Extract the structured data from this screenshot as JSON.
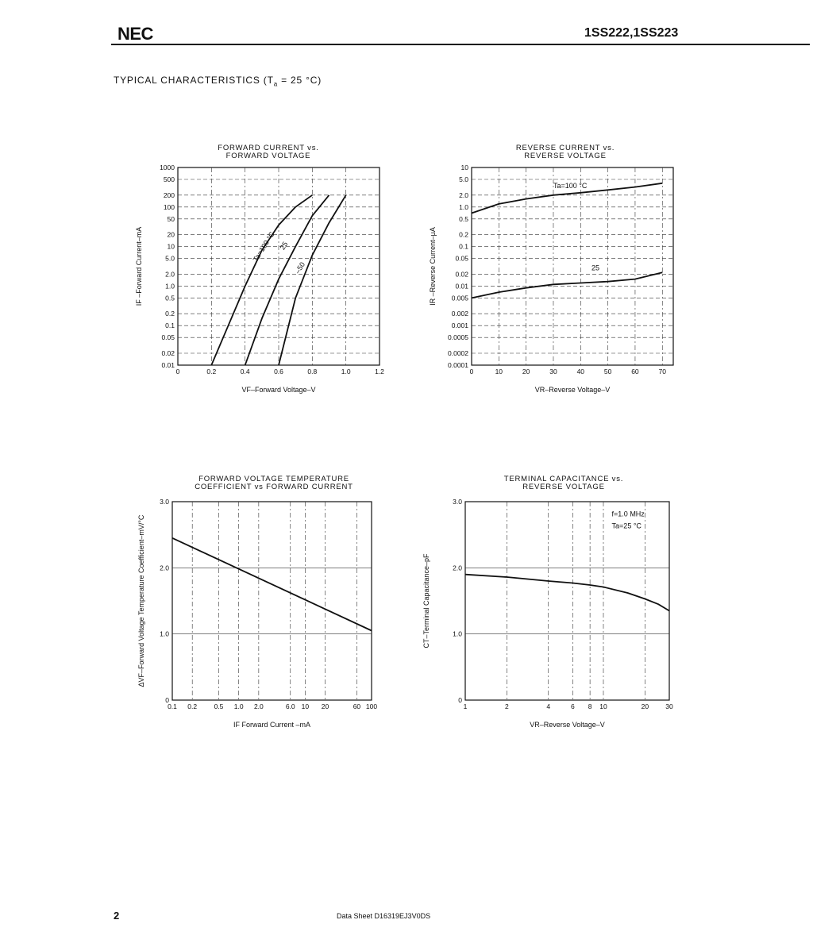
{
  "header": {
    "logo": "NEC",
    "part_number": "1SS222,1SS223"
  },
  "section_title": {
    "main": "TYPICAL CHARACTERISTICS (T",
    "sub": "a",
    "tail": " = 25 °C)"
  },
  "footer": {
    "page": "2",
    "doc_id": "Data Sheet  D16319EJ3V0DS"
  },
  "chart_data": [
    {
      "type": "line",
      "title": [
        "FORWARD CURRENT vs.",
        "FORWARD VOLTAGE"
      ],
      "xlabel": "VF–Forward Voltage–V",
      "ylabel": "IF –Forward Current–mA",
      "xlim": [
        0,
        1.2
      ],
      "ylim": [
        0.01,
        1000
      ],
      "yscale": "log",
      "x_ticks": [
        "0",
        "0.2",
        "0.4",
        "0.6",
        "0.8",
        "1.0",
        "1.2"
      ],
      "y_ticks": [
        "1000",
        "500",
        "200",
        "100",
        "50",
        "20",
        "10",
        "5.0",
        "2.0",
        "1.0",
        "0.5",
        "0.2",
        "0.1",
        "0.05",
        "0.02",
        "0.01"
      ],
      "grid": true,
      "series": [
        {
          "name": "Ta=100 °C",
          "x": [
            0.2,
            0.3,
            0.4,
            0.5,
            0.6,
            0.7,
            0.8
          ],
          "y": [
            0.01,
            0.1,
            1.0,
            8,
            35,
            100,
            200
          ]
        },
        {
          "name": "25",
          "x": [
            0.4,
            0.5,
            0.6,
            0.7,
            0.8,
            0.9
          ],
          "y": [
            0.01,
            0.15,
            1.5,
            10,
            60,
            200
          ]
        },
        {
          "name": "-50",
          "x": [
            0.6,
            0.7,
            0.8,
            0.9,
            1.0
          ],
          "y": [
            0.01,
            0.5,
            6,
            40,
            200
          ]
        }
      ],
      "annotations": [
        "Ta=100 °C",
        "25",
        "–50"
      ]
    },
    {
      "type": "line",
      "title": [
        "REVERSE CURRENT vs.",
        "REVERSE VOLTAGE"
      ],
      "xlabel": "VR–Reverse Voltage–V",
      "ylabel": "IR –Reverse Current–μA",
      "xlim": [
        0,
        74
      ],
      "ylim": [
        0.0001,
        10
      ],
      "yscale": "log",
      "x_ticks": [
        "0",
        "10",
        "20",
        "30",
        "40",
        "50",
        "60",
        "70"
      ],
      "y_ticks": [
        "10",
        "5.0",
        "2.0",
        "1.0",
        "0.5",
        "0.2",
        "0.1",
        "0.05",
        "0.02",
        "0.01",
        "0.005",
        "0.002",
        "0.001",
        "0.0005",
        "0.0002",
        "0.0001"
      ],
      "grid": true,
      "series": [
        {
          "name": "Ta=100 °C",
          "x": [
            0,
            10,
            20,
            30,
            40,
            50,
            60,
            70
          ],
          "y": [
            0.7,
            1.2,
            1.6,
            2.0,
            2.3,
            2.7,
            3.2,
            4.0
          ]
        },
        {
          "name": "25",
          "x": [
            0,
            10,
            20,
            30,
            40,
            50,
            60,
            70
          ],
          "y": [
            0.005,
            0.007,
            0.009,
            0.011,
            0.012,
            0.013,
            0.015,
            0.022
          ]
        }
      ],
      "annotations": [
        "Ta=100 °C",
        "25"
      ]
    },
    {
      "type": "line",
      "title": [
        "FORWARD VOLTAGE TEMPERATURE",
        "COEFFICIENT vs FORWARD CURRENT"
      ],
      "xlabel": "IF  Forward Current –mA",
      "ylabel": "ΔVF–Forward Voltage Temperature Coefficient–mV/°C",
      "xlim": [
        0.1,
        100
      ],
      "ylim": [
        0,
        3.0
      ],
      "xscale": "log",
      "x_ticks": [
        "0.1",
        "0.2",
        "0.5",
        "1.0",
        "2.0",
        "6.0",
        "10",
        "20",
        "60",
        "100"
      ],
      "y_ticks": [
        "3.0",
        "2.0",
        "1.0",
        "0"
      ],
      "grid": true,
      "series": [
        {
          "name": "",
          "x": [
            0.1,
            100
          ],
          "y": [
            2.45,
            1.05
          ]
        }
      ],
      "annotations": []
    },
    {
      "type": "line",
      "title": [
        "TERMINAL CAPACITANCE vs.",
        "REVERSE VOLTAGE"
      ],
      "xlabel": "VR–Reverse Voltage–V",
      "ylabel": "CT–Terminal Capacitance–pF",
      "xlim": [
        1,
        30
      ],
      "ylim": [
        0,
        3.0
      ],
      "xscale": "log",
      "x_ticks": [
        "1",
        "2",
        "4",
        "6",
        "8",
        "10",
        "20",
        "30"
      ],
      "y_ticks": [
        "3.0",
        "2.0",
        "1.0",
        "0"
      ],
      "grid": true,
      "series": [
        {
          "name": "",
          "x": [
            1,
            2,
            4,
            6,
            8,
            10,
            15,
            20,
            25,
            30
          ],
          "y": [
            1.9,
            1.86,
            1.8,
            1.77,
            1.74,
            1.71,
            1.62,
            1.53,
            1.45,
            1.35
          ]
        }
      ],
      "annotations": [
        "f=1.0 MHz",
        "Ta=25 °C"
      ]
    }
  ]
}
